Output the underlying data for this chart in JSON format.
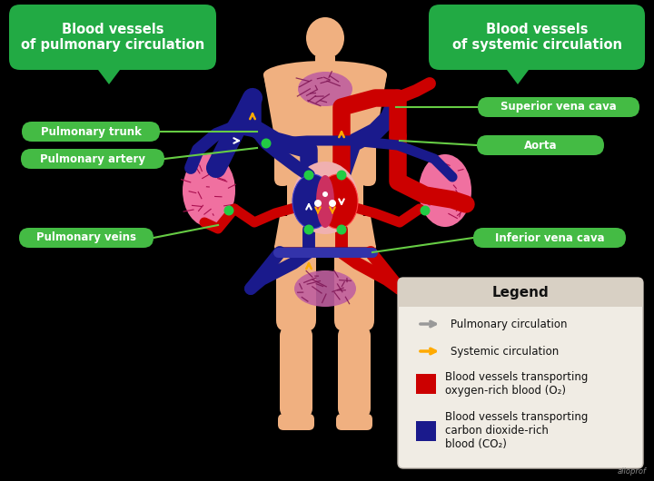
{
  "bg_color": "#000000",
  "skin_color": "#f0b080",
  "red": "#cc0000",
  "blue": "#1a1a8c",
  "pink_lung": "#f06090",
  "dark_pink": "#c03060",
  "green_title": "#22aa44",
  "green_label": "#44bb44",
  "green_line": "#66cc44",
  "orange": "#ffaa00",
  "gray_arrow": "#aaaaaa",
  "white": "#ffffff",
  "legend_bg": "#f0ece4",
  "legend_header": "#d8d0c4",
  "title_left": "Blood vessels\nof pulmonary circulation",
  "title_right": "Blood vessels\nof systemic circulation",
  "labels_left": [
    "Pulmonary trunk",
    "Pulmonary artery",
    "Pulmonary veins"
  ],
  "labels_right": [
    "Superior vena cava",
    "Aorta",
    "Inferior vena cava"
  ],
  "legend_title": "Legend",
  "legend_item1": "Pulmonary circulation",
  "legend_item2": "Systemic circulation",
  "legend_item3": "Blood vessels transporting\noxygen-rich blood (O₂)",
  "legend_item4": "Blood vessels transporting\ncarbon dioxide-rich\nblood (CO₂)"
}
